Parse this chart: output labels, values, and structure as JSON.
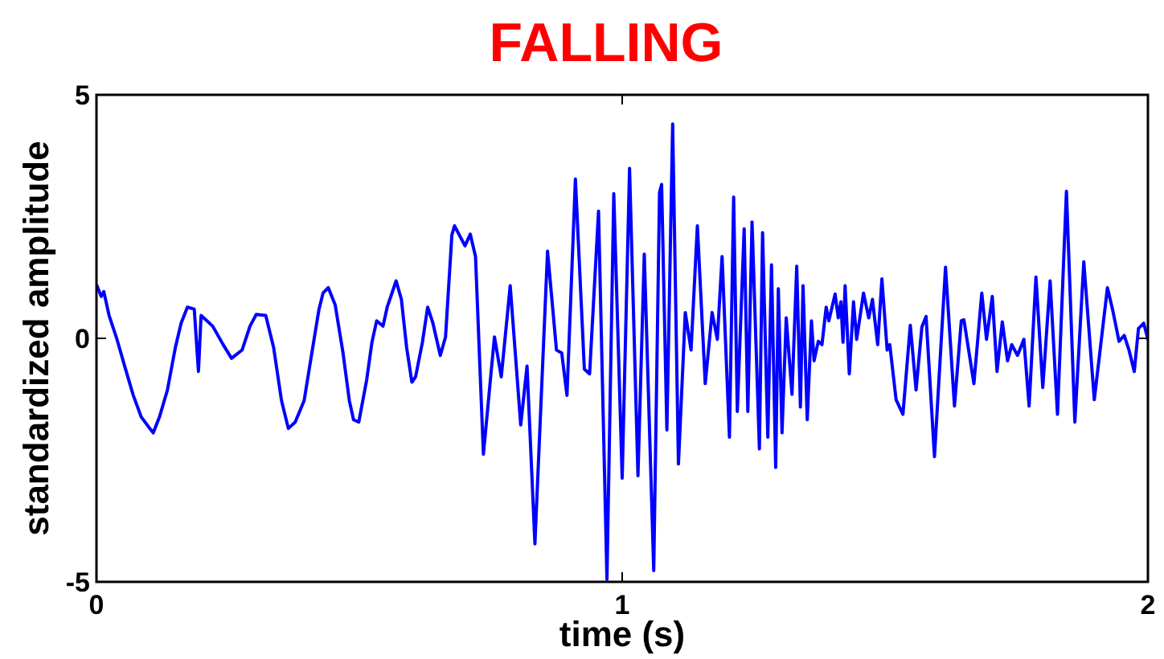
{
  "chart_data": {
    "type": "line",
    "title": "FALLING",
    "xlabel": "time (s)",
    "ylabel": "standardized amplitude",
    "xlim": [
      0,
      2
    ],
    "ylim": [
      -5,
      5
    ],
    "xticks": [
      0,
      1,
      2
    ],
    "yticks": [
      -5,
      0,
      5
    ],
    "grid": false,
    "marker": "none",
    "line_style": "solid",
    "series": [
      {
        "color": "#0000ff",
        "x": [
          0.001,
          0.009,
          0.014,
          0.024,
          0.039,
          0.055,
          0.07,
          0.085,
          0.1,
          0.108,
          0.12,
          0.135,
          0.15,
          0.161,
          0.173,
          0.186,
          0.194,
          0.199,
          0.221,
          0.241,
          0.257,
          0.277,
          0.292,
          0.304,
          0.322,
          0.337,
          0.352,
          0.365,
          0.378,
          0.395,
          0.408,
          0.423,
          0.431,
          0.441,
          0.454,
          0.469,
          0.481,
          0.489,
          0.499,
          0.514,
          0.524,
          0.533,
          0.545,
          0.553,
          0.57,
          0.58,
          0.59,
          0.6,
          0.607,
          0.62,
          0.63,
          0.64,
          0.654,
          0.664,
          0.676,
          0.681,
          0.701,
          0.711,
          0.721,
          0.736,
          0.757,
          0.77,
          0.787,
          0.807,
          0.819,
          0.834,
          0.858,
          0.875,
          0.885,
          0.895,
          0.911,
          0.928,
          0.938,
          0.955,
          0.971,
          0.984,
          1.0,
          1.014,
          1.03,
          1.042,
          1.06,
          1.071,
          1.075,
          1.085,
          1.096,
          1.107,
          1.12,
          1.131,
          1.143,
          1.158,
          1.171,
          1.181,
          1.19,
          1.204,
          1.212,
          1.219,
          1.232,
          1.239,
          1.247,
          1.261,
          1.267,
          1.277,
          1.284,
          1.292,
          1.297,
          1.304,
          1.312,
          1.323,
          1.332,
          1.339,
          1.344,
          1.352,
          1.36,
          1.365,
          1.373,
          1.38,
          1.388,
          1.393,
          1.405,
          1.411,
          1.416,
          1.42,
          1.424,
          1.432,
          1.44,
          1.446,
          1.459,
          1.469,
          1.476,
          1.486,
          1.494,
          1.504,
          1.509,
          1.521,
          1.534,
          1.548,
          1.559,
          1.57,
          1.578,
          1.594,
          1.615,
          1.632,
          1.645,
          1.65,
          1.669,
          1.684,
          1.693,
          1.704,
          1.713,
          1.723,
          1.733,
          1.741,
          1.752,
          1.764,
          1.774,
          1.787,
          1.8,
          1.814,
          1.828,
          1.845,
          1.861,
          1.878,
          1.898,
          1.923,
          1.933,
          1.945,
          1.955,
          1.964,
          1.974,
          1.982,
          1.992,
          2.0
        ],
        "values": [
          1.08,
          0.86,
          0.96,
          0.47,
          -0.02,
          -0.62,
          -1.17,
          -1.61,
          -1.83,
          -1.94,
          -1.61,
          -1.06,
          -0.19,
          0.31,
          0.64,
          0.6,
          -0.68,
          0.47,
          0.25,
          -0.13,
          -0.41,
          -0.24,
          0.25,
          0.49,
          0.47,
          -0.19,
          -1.28,
          -1.85,
          -1.72,
          -1.28,
          -0.41,
          0.58,
          0.93,
          1.04,
          0.69,
          -0.3,
          -1.28,
          -1.67,
          -1.72,
          -0.85,
          -0.08,
          0.36,
          0.25,
          0.64,
          1.18,
          0.8,
          -0.19,
          -0.9,
          -0.79,
          -0.08,
          0.64,
          0.31,
          -0.35,
          0.03,
          2.12,
          2.31,
          1.9,
          2.14,
          1.68,
          -2.38,
          0.03,
          -0.79,
          1.08,
          -1.78,
          -0.57,
          -4.22,
          1.79,
          -0.24,
          -0.3,
          -1.17,
          3.27,
          -0.63,
          -0.73,
          2.61,
          -4.95,
          2.97,
          -2.87,
          3.49,
          -2.82,
          1.73,
          -4.77,
          2.99,
          3.16,
          -1.88,
          4.4,
          -2.58,
          0.53,
          -0.24,
          2.31,
          -0.93,
          0.53,
          -0.02,
          1.68,
          -2.03,
          2.9,
          -1.5,
          2.25,
          -1.5,
          2.39,
          -2.27,
          2.17,
          -2.03,
          1.51,
          -2.65,
          1.02,
          -1.94,
          0.42,
          -1.15,
          1.48,
          -1.41,
          1.08,
          -1.67,
          0.36,
          -0.46,
          -0.06,
          -0.13,
          0.64,
          0.36,
          0.91,
          0.42,
          0.75,
          -0.08,
          1.08,
          -0.73,
          0.75,
          -0.02,
          0.93,
          0.42,
          0.8,
          -0.13,
          1.22,
          -0.24,
          -0.13,
          -1.26,
          -1.56,
          0.27,
          -1.06,
          0.23,
          0.45,
          -2.43,
          1.46,
          -1.39,
          0.36,
          0.38,
          -0.93,
          0.93,
          -0.02,
          0.86,
          -0.68,
          0.34,
          -0.46,
          -0.13,
          -0.35,
          -0.02,
          -1.39,
          1.26,
          -1.01,
          1.18,
          -1.56,
          3.02,
          -1.72,
          1.57,
          -1.26,
          1.04,
          0.58,
          -0.06,
          0.06,
          -0.24,
          -0.68,
          0.2,
          0.31,
          -0.02
        ]
      }
    ]
  }
}
